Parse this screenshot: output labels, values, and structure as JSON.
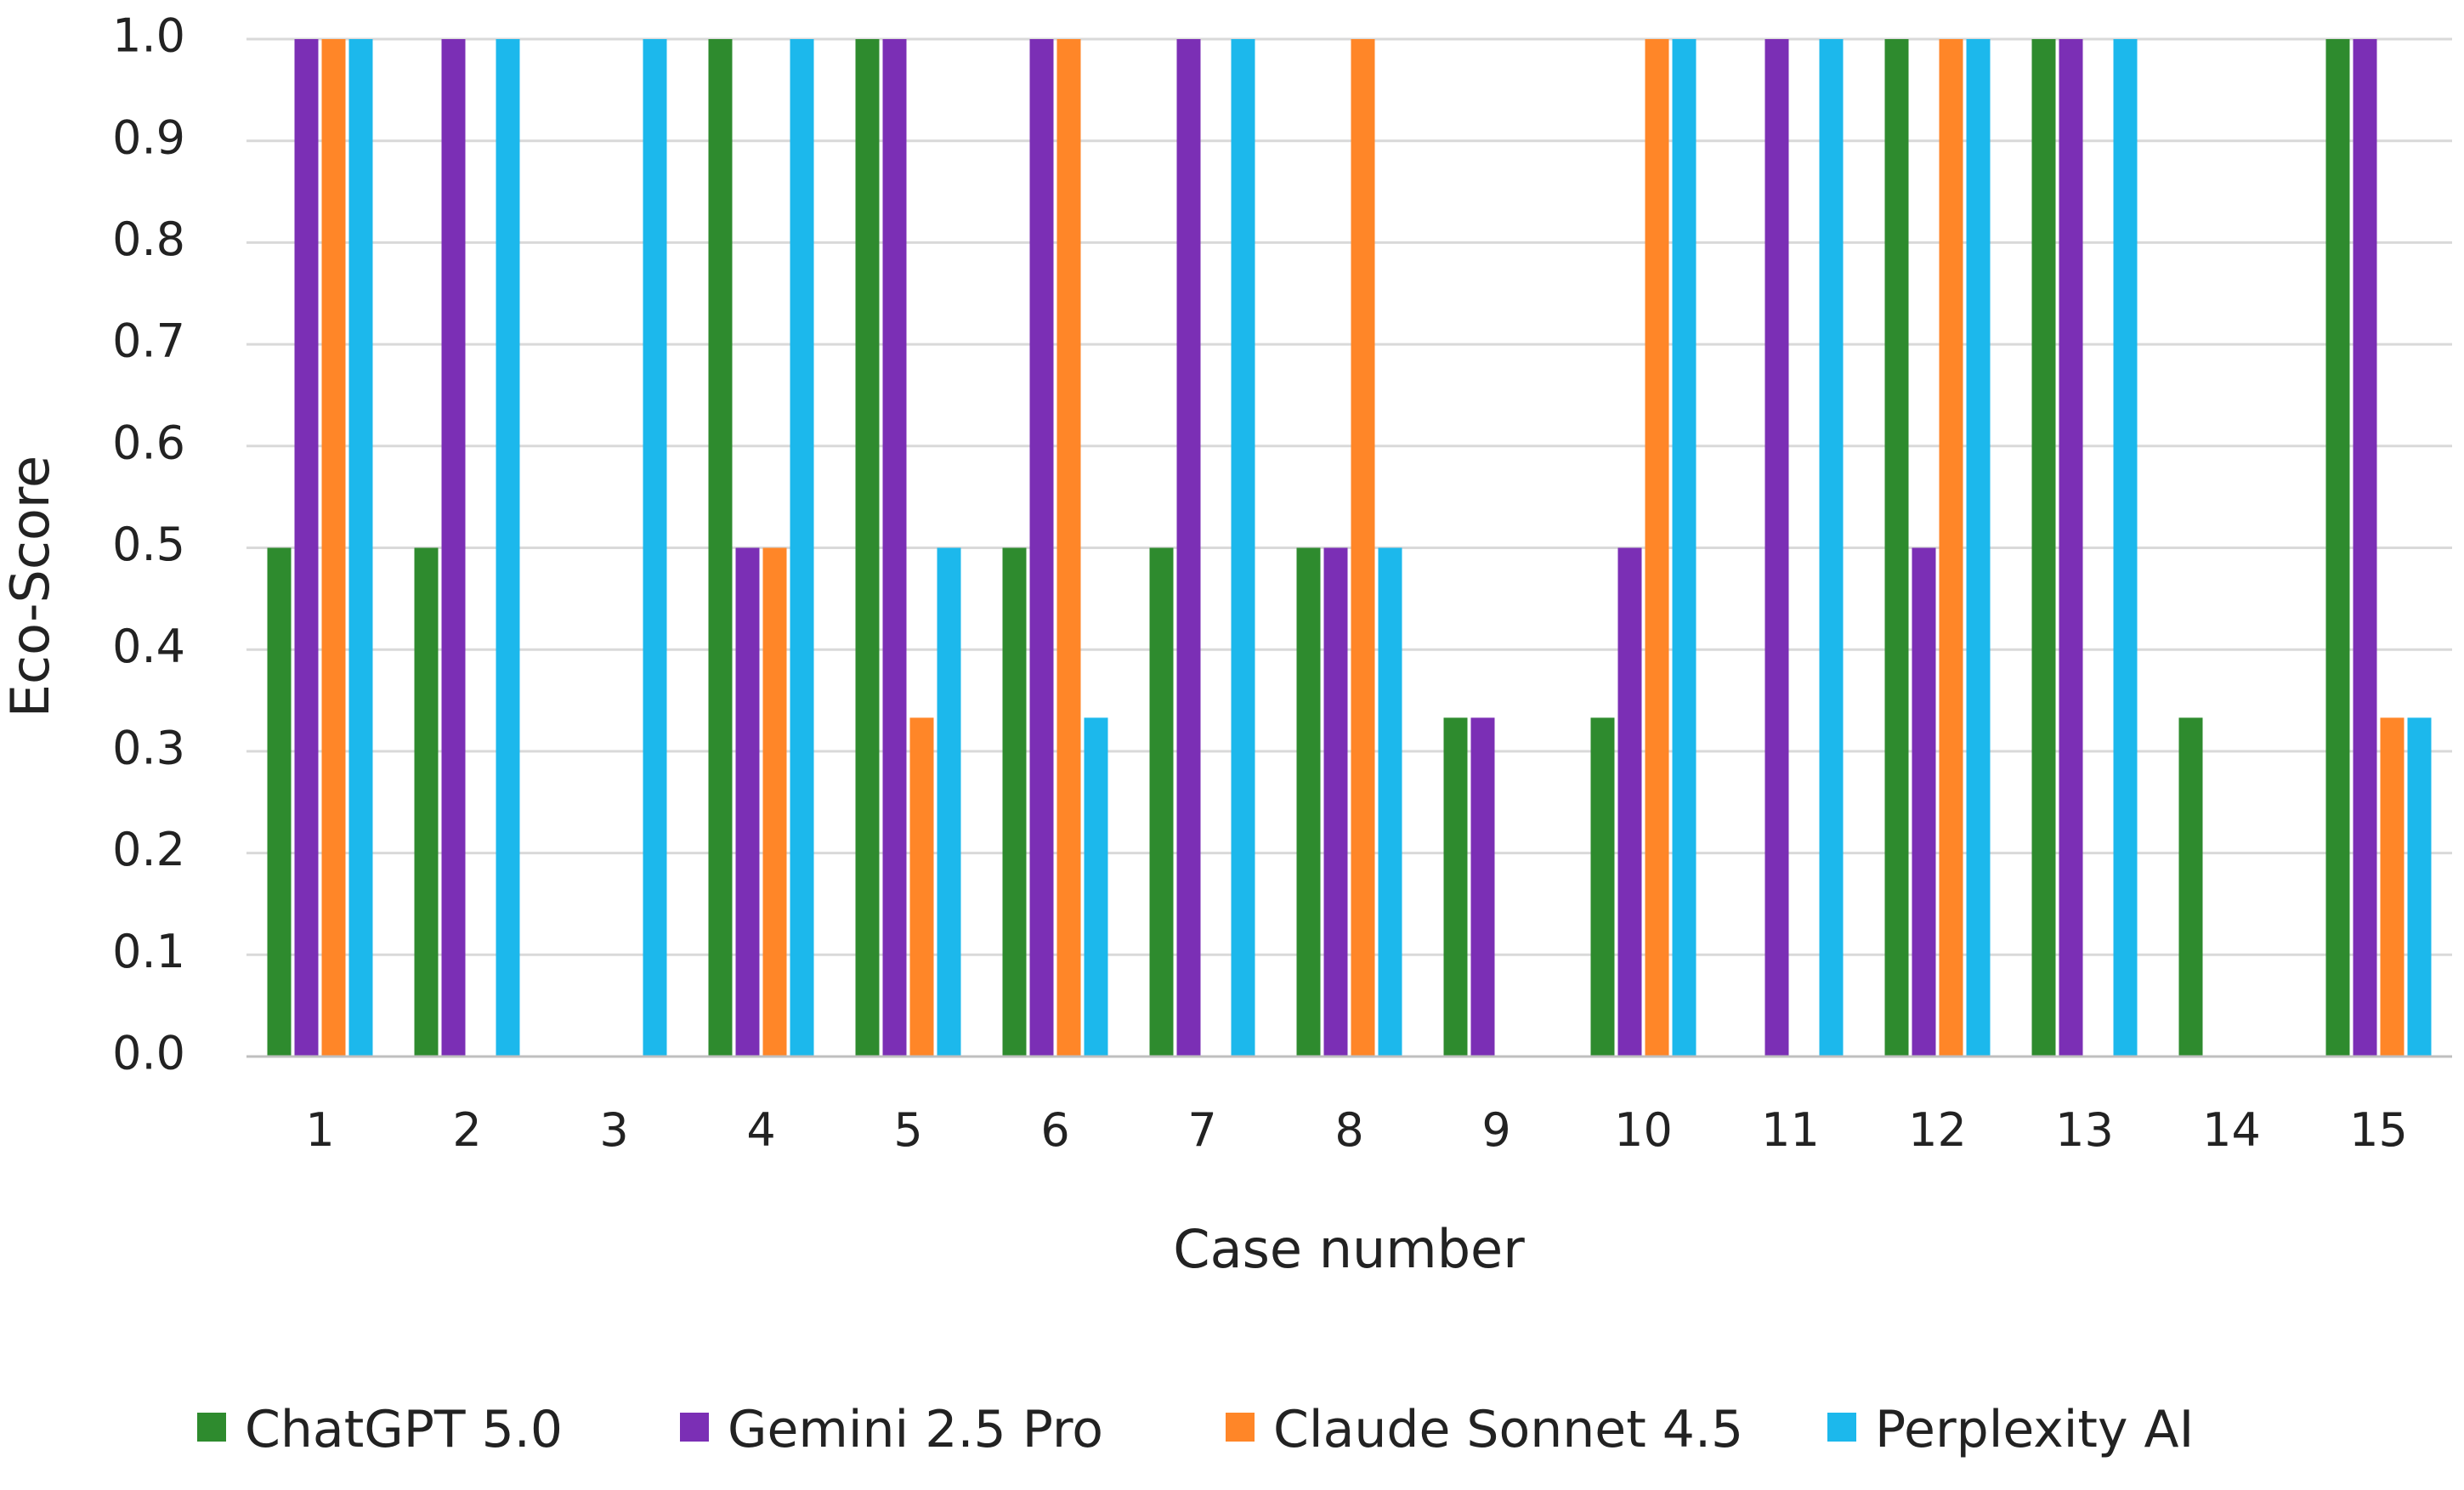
{
  "chart_data": {
    "type": "bar",
    "title": "",
    "xlabel": "Case number",
    "ylabel": "Eco-Score",
    "ylim": [
      0,
      1
    ],
    "yticks": [
      "0.0",
      "0.1",
      "0.2",
      "0.3",
      "0.4",
      "0.5",
      "0.6",
      "0.7",
      "0.8",
      "0.9",
      "1.0"
    ],
    "grid": true,
    "legend_position": "bottom",
    "categories": [
      "1",
      "2",
      "3",
      "4",
      "5",
      "6",
      "7",
      "8",
      "9",
      "10",
      "11",
      "12",
      "13",
      "14",
      "15"
    ],
    "series": [
      {
        "name": "ChatGPT 5.0",
        "color": "#2e8b2e",
        "values": [
          0.5,
          0.5,
          0,
          1.0,
          1.0,
          0.5,
          0.5,
          0.5,
          0.333,
          0.333,
          0,
          1.0,
          1.0,
          0.333,
          1.0
        ]
      },
      {
        "name": "Gemini 2.5 Pro",
        "color": "#7b2fb5",
        "values": [
          1.0,
          1.0,
          0,
          0.5,
          1.0,
          1.0,
          1.0,
          0.5,
          0.333,
          0.5,
          1.0,
          0.5,
          1.0,
          0,
          1.0
        ]
      },
      {
        "name": "Claude Sonnet 4.5",
        "color": "#ff8628",
        "values": [
          1.0,
          0,
          0,
          0.5,
          0.333,
          1.0,
          0,
          1.0,
          0,
          1.0,
          0,
          1.0,
          0,
          0,
          0.333
        ]
      },
      {
        "name": "Perplexity AI",
        "color": "#1cb8ec",
        "values": [
          1.0,
          1.0,
          1.0,
          1.0,
          0.5,
          0.333,
          1.0,
          0.5,
          0,
          1.0,
          1.0,
          1.0,
          1.0,
          0,
          0.333
        ]
      }
    ]
  }
}
